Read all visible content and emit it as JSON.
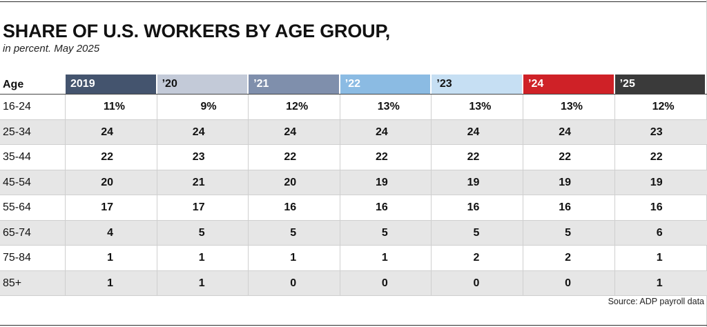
{
  "title": "SHARE OF U.S. WORKERS BY AGE GROUP,",
  "subtitle": "in percent. May 2025",
  "source": "Source: ADP payroll data",
  "chart_data": {
    "type": "table",
    "row_header": "Age",
    "columns": [
      {
        "label": "2019",
        "color": "#44546e",
        "text_color": "#ffffff"
      },
      {
        "label": "’20",
        "color": "#c3cad8",
        "text_color": "#111111"
      },
      {
        "label": "’21",
        "color": "#7f8fac",
        "text_color": "#ffffff"
      },
      {
        "label": "’22",
        "color": "#8bbbe3",
        "text_color": "#ffffff"
      },
      {
        "label": "’23",
        "color": "#c6dff3",
        "text_color": "#111111"
      },
      {
        "label": "’24",
        "color": "#cf2127",
        "text_color": "#ffffff"
      },
      {
        "label": "’25",
        "color": "#3a3a3a",
        "text_color": "#ffffff"
      }
    ],
    "rows": [
      {
        "label": "16-24",
        "values": [
          "11%",
          "9%",
          "12%",
          "13%",
          "13%",
          "13%",
          "12%"
        ]
      },
      {
        "label": "25-34",
        "values": [
          "24",
          "24",
          "24",
          "24",
          "24",
          "24",
          "23"
        ]
      },
      {
        "label": "35-44",
        "values": [
          "22",
          "23",
          "22",
          "22",
          "22",
          "22",
          "22"
        ]
      },
      {
        "label": "45-54",
        "values": [
          "20",
          "21",
          "20",
          "19",
          "19",
          "19",
          "19"
        ]
      },
      {
        "label": "55-64",
        "values": [
          "17",
          "17",
          "16",
          "16",
          "16",
          "16",
          "16"
        ]
      },
      {
        "label": "65-74",
        "values": [
          "4",
          "5",
          "5",
          "5",
          "5",
          "5",
          "6"
        ]
      },
      {
        "label": "75-84",
        "values": [
          "1",
          "1",
          "1",
          "1",
          "2",
          "2",
          "1"
        ]
      },
      {
        "label": "85+",
        "values": [
          "1",
          "1",
          "0",
          "0",
          "0",
          "0",
          "1"
        ]
      }
    ]
  }
}
